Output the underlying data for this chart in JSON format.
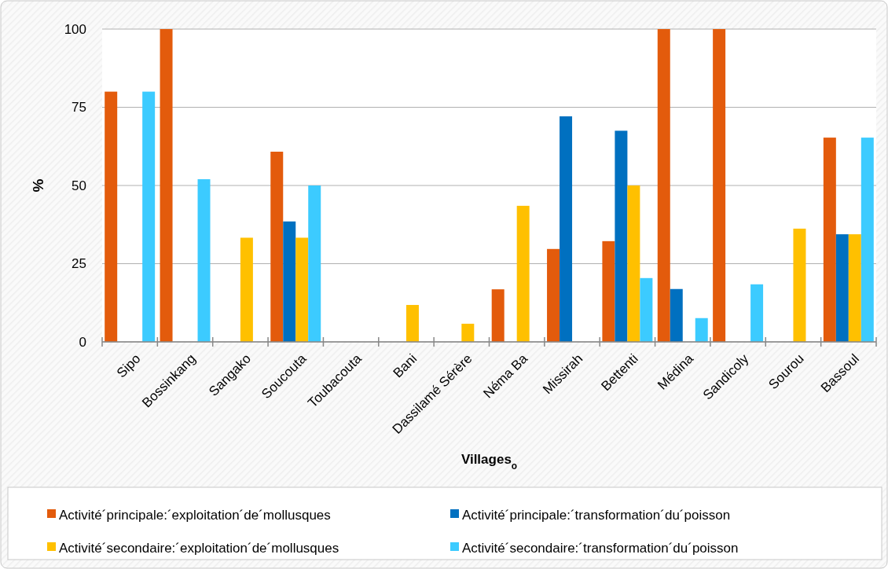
{
  "chart_data": {
    "type": "bar",
    "xlabel": "Villages$_{o}$",
    "ylabel": "%",
    "categories": [
      "Sipo",
      "Bossinkang",
      "Sangako",
      "Soucouta",
      "Toubacouta",
      "Bani",
      "Dassilamé Sérère",
      "Néma Ba",
      "Missirah",
      "Bettenti",
      "Médina",
      "Sandicoly",
      "Sourou",
      "Bassoul"
    ],
    "series": [
      {
        "name": "Activité´principale:´exploitation´de´mollusques",
        "color": "#e35b0c",
        "values": [
          80,
          100,
          null,
          60.8,
          null,
          null,
          null,
          16.8,
          29.7,
          32.2,
          100,
          100,
          null,
          65.3
        ]
      },
      {
        "name": "Activité´principale:´transformation´du´poisson",
        "color": "#0070c0",
        "values": [
          null,
          null,
          null,
          38.5,
          null,
          null,
          null,
          null,
          72.1,
          67.5,
          16.9,
          null,
          null,
          34.4
        ]
      },
      {
        "name": "Activité´secondaire:´exploitation´de´mollusques",
        "color": "#ffc000",
        "values": [
          null,
          null,
          33.3,
          33.3,
          null,
          11.8,
          5.8,
          43.5,
          null,
          50,
          null,
          null,
          36.2,
          34.4
        ]
      },
      {
        "name": "Activité´secondaire:´transformation´du´poisson",
        "color": "#3ccbff",
        "values": [
          80,
          52,
          null,
          50,
          null,
          null,
          null,
          null,
          null,
          20.4,
          7.6,
          18.4,
          null,
          65.3
        ]
      }
    ],
    "ylim": [
      0,
      100
    ],
    "yticks": [
      0,
      25,
      50,
      75,
      100
    ],
    "grid": "y",
    "legend": "bottom"
  }
}
